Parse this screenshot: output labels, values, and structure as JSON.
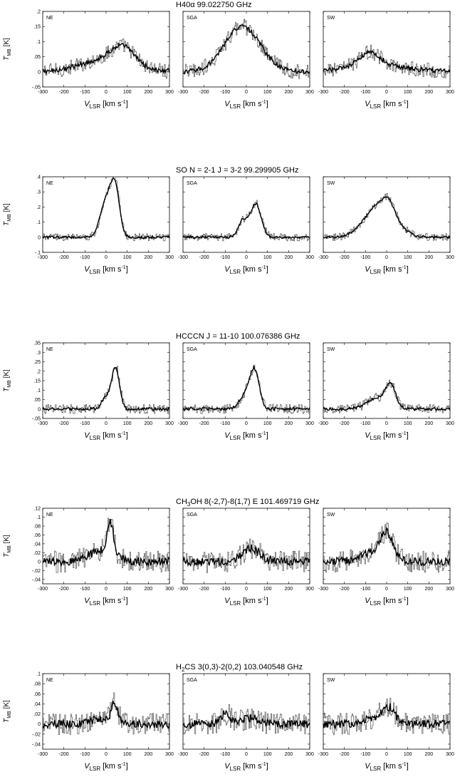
{
  "xlim": [
    -300,
    300
  ],
  "xticks": [
    -300,
    -200,
    -100,
    0,
    100,
    200,
    300
  ],
  "xlabel": {
    "main": "V",
    "sub": "LSR",
    "unit": " [km s",
    "sup": "-1",
    "close": "]"
  },
  "ylabel": {
    "main": "T",
    "sub": "MB",
    "unit": " [K]"
  },
  "chart_data": [
    {
      "type": "line",
      "title": {
        "prefix": "H",
        "sub": "",
        "rest": "40α",
        "gap": "",
        "freq": "99.022750 GHz"
      },
      "ylim": [
        -0.05,
        0.2
      ],
      "yticks": [
        -0.05,
        0,
        0.05,
        0.1,
        0.15,
        0.2
      ],
      "panels": [
        {
          "label": "NE",
          "components": [
            {
              "center": 80,
              "width": 55,
              "amp": 0.055
            },
            {
              "center": 0,
              "width": 120,
              "amp": 0.04
            }
          ],
          "noise": 0.025,
          "smooth_noise": 0.008
        },
        {
          "label": "SGA",
          "components": [
            {
              "center": -20,
              "width": 85,
              "amp": 0.15
            }
          ],
          "noise": 0.025,
          "smooth_noise": 0.008
        },
        {
          "label": "SW",
          "components": [
            {
              "center": -80,
              "width": 50,
              "amp": 0.045
            },
            {
              "center": -50,
              "width": 150,
              "amp": 0.02
            }
          ],
          "noise": 0.025,
          "smooth_noise": 0.008
        }
      ]
    },
    {
      "type": "line",
      "title": {
        "prefix": "SO",
        "sub": "",
        "rest": "",
        "gap": "N = 2-1  J = 3-2",
        "freq": "99.299905 GHz"
      },
      "ylim": [
        -0.1,
        0.4
      ],
      "yticks": [
        -0.1,
        0,
        0.1,
        0.2,
        0.3,
        0.4
      ],
      "panels": [
        {
          "label": "NE",
          "components": [
            {
              "center": 5,
              "width": 30,
              "amp": 0.26
            },
            {
              "center": 45,
              "width": 20,
              "amp": 0.26
            }
          ],
          "noise": 0.025,
          "smooth_noise": 0.008
        },
        {
          "label": "SGA",
          "components": [
            {
              "center": -15,
              "width": 22,
              "amp": 0.11
            },
            {
              "center": 45,
              "width": 25,
              "amp": 0.22
            }
          ],
          "noise": 0.025,
          "smooth_noise": 0.008
        },
        {
          "label": "SW",
          "components": [
            {
              "center": -30,
              "width": 70,
              "amp": 0.22
            },
            {
              "center": 10,
              "width": 25,
              "amp": 0.07
            }
          ],
          "noise": 0.025,
          "smooth_noise": 0.008
        }
      ]
    },
    {
      "type": "line",
      "title": {
        "prefix": "HCCCN",
        "sub": "",
        "rest": "",
        "gap": "J = 11-10",
        "freq": "100.076386 GHz"
      },
      "ylim": [
        -0.05,
        0.35
      ],
      "yticks": [
        -0.05,
        0,
        0.05,
        0.1,
        0.15,
        0.2,
        0.25,
        0.3,
        0.35
      ],
      "panels": [
        {
          "label": "NE",
          "components": [
            {
              "center": 0,
              "width": 20,
              "amp": 0.06
            },
            {
              "center": 45,
              "width": 18,
              "amp": 0.22
            }
          ],
          "noise": 0.025,
          "smooth_noise": 0.008
        },
        {
          "label": "SGA",
          "components": [
            {
              "center": 0,
              "width": 30,
              "amp": 0.08
            },
            {
              "center": 40,
              "width": 22,
              "amp": 0.18
            }
          ],
          "noise": 0.025,
          "smooth_noise": 0.008
        },
        {
          "label": "SW",
          "components": [
            {
              "center": -40,
              "width": 50,
              "amp": 0.06
            },
            {
              "center": 20,
              "width": 22,
              "amp": 0.11
            }
          ],
          "noise": 0.025,
          "smooth_noise": 0.008
        }
      ]
    },
    {
      "type": "line",
      "title": {
        "prefix": "CH",
        "sub": "3",
        "rest": "OH",
        "gap": "8(-2,7)-8(1,7) E",
        "freq": "101.469719 GHz"
      },
      "ylim": [
        -0.05,
        0.12
      ],
      "yticks": [
        -0.04,
        -0.02,
        0,
        0.02,
        0.04,
        0.06,
        0.08,
        0.1,
        0.12
      ],
      "panels": [
        {
          "label": "NE",
          "components": [
            {
              "center": 20,
              "width": 15,
              "amp": 0.07
            },
            {
              "center": -20,
              "width": 60,
              "amp": 0.025
            }
          ],
          "noise": 0.025,
          "smooth_noise": 0.009
        },
        {
          "label": "SGA",
          "components": [
            {
              "center": 20,
              "width": 40,
              "amp": 0.03
            }
          ],
          "noise": 0.025,
          "smooth_noise": 0.009
        },
        {
          "label": "SW",
          "components": [
            {
              "center": 0,
              "width": 30,
              "amp": 0.055
            },
            {
              "center": -60,
              "width": 60,
              "amp": 0.02
            }
          ],
          "noise": 0.025,
          "smooth_noise": 0.009
        }
      ]
    },
    {
      "type": "line",
      "title": {
        "prefix": "H",
        "sub": "2",
        "rest": "CS",
        "gap": "3(0,3)-2(0,2)",
        "freq": "103.040548 GHz"
      },
      "ylim": [
        -0.05,
        0.1
      ],
      "yticks": [
        -0.04,
        -0.02,
        0,
        0.02,
        0.04,
        0.06,
        0.08,
        0.1
      ],
      "panels": [
        {
          "label": "NE",
          "components": [
            {
              "center": 40,
              "width": 15,
              "amp": 0.04
            },
            {
              "center": -30,
              "width": 50,
              "amp": 0.01
            }
          ],
          "noise": 0.022,
          "smooth_noise": 0.008
        },
        {
          "label": "SGA",
          "components": [
            {
              "center": -100,
              "width": 25,
              "amp": 0.02
            },
            {
              "center": 20,
              "width": 40,
              "amp": 0.012
            }
          ],
          "noise": 0.022,
          "smooth_noise": 0.008
        },
        {
          "label": "SW",
          "components": [
            {
              "center": 10,
              "width": 30,
              "amp": 0.03
            },
            {
              "center": -60,
              "width": 50,
              "amp": 0.012
            }
          ],
          "noise": 0.022,
          "smooth_noise": 0.008
        }
      ]
    }
  ]
}
